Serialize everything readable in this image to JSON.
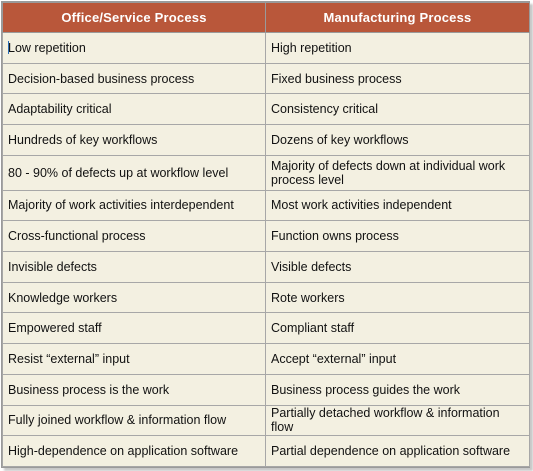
{
  "table": {
    "headers": [
      "Office/Service  Process",
      "Manufacturing  Process"
    ],
    "rows": [
      [
        "Low repetition",
        "High repetition"
      ],
      [
        "Decision-based business process",
        "Fixed business process"
      ],
      [
        "Adaptability critical",
        "Consistency critical"
      ],
      [
        "Hundreds  of key workflows",
        "Dozens of key workflows"
      ],
      [
        "80 - 90% of defects up at workflow level",
        "Majority of defects down at individual work process level"
      ],
      [
        "Majority of work activities interdependent",
        "Most work activities independent"
      ],
      [
        "Cross-functional process",
        "Function owns process"
      ],
      [
        "Invisible defects",
        "Visible defects"
      ],
      [
        "Knowledge workers",
        "Rote workers"
      ],
      [
        "Empowered staff",
        "Compliant staff"
      ],
      [
        "Resist “external” input",
        "Accept “external” input"
      ],
      [
        "Business process is the work",
        "Business process guides the work"
      ],
      [
        "Fully joined workflow & information flow",
        "Partially detached workflow & information flow"
      ],
      [
        "High-dependence on application software",
        "Partial dependence on application software"
      ]
    ]
  }
}
